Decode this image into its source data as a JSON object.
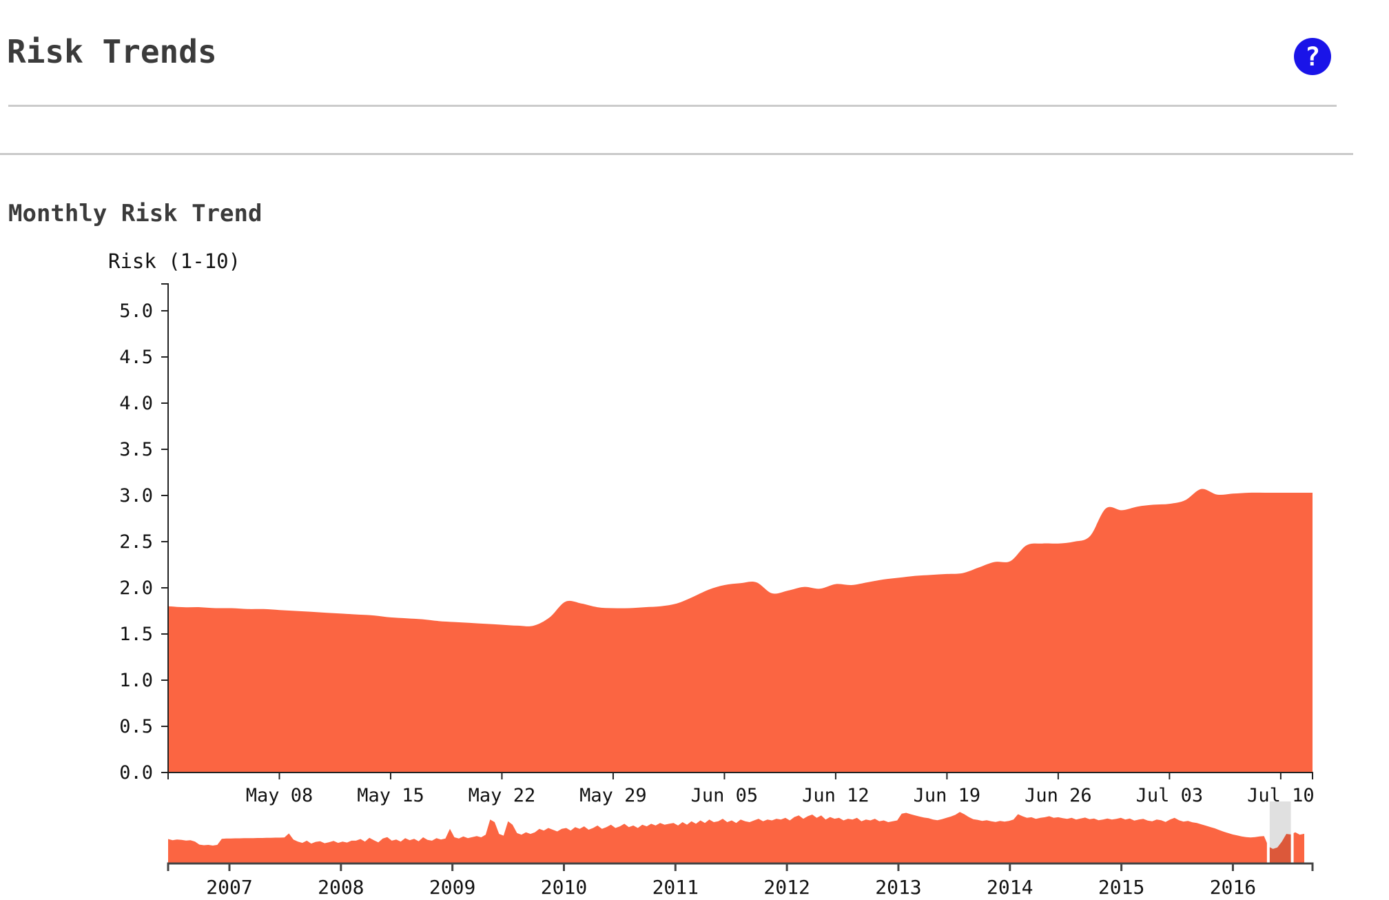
{
  "page": {
    "title": "Risk Trends"
  },
  "header": {
    "help_glyph": "?"
  },
  "chart_data": {
    "type": "area",
    "title": "Monthly Risk Trend",
    "ylabel": "Risk (1-10)",
    "ylim": [
      0,
      5
    ],
    "grid": false,
    "legend": "none",
    "colors": {
      "area": "#FB6542",
      "axis": "#222222",
      "mini_axis": "#444444",
      "tick_text": "#111111",
      "brush_overlay": "rgba(0,0,0,0.12)"
    },
    "y_ticks": [
      0,
      0.5,
      1.0,
      1.5,
      2.0,
      2.5,
      3.0,
      3.5,
      4.0,
      4.5,
      5.0
    ],
    "x_ticks": [
      {
        "label": "May 08",
        "day_index": 7
      },
      {
        "label": "May 15",
        "day_index": 14
      },
      {
        "label": "May 22",
        "day_index": 21
      },
      {
        "label": "May 29",
        "day_index": 28
      },
      {
        "label": "Jun 05",
        "day_index": 35
      },
      {
        "label": "Jun 12",
        "day_index": 42
      },
      {
        "label": "Jun 19",
        "day_index": 49
      },
      {
        "label": "Jun 26",
        "day_index": 56
      },
      {
        "label": "Jul 03",
        "day_index": 63
      },
      {
        "label": "Jul 10",
        "day_index": 70
      }
    ],
    "series": {
      "name": "Risk",
      "start_label": "May 01",
      "interval": "day",
      "values": [
        1.8,
        1.79,
        1.79,
        1.78,
        1.78,
        1.77,
        1.77,
        1.76,
        1.75,
        1.74,
        1.73,
        1.72,
        1.71,
        1.7,
        1.68,
        1.67,
        1.66,
        1.64,
        1.63,
        1.62,
        1.61,
        1.6,
        1.59,
        1.59,
        1.68,
        1.85,
        1.83,
        1.79,
        1.78,
        1.78,
        1.79,
        1.8,
        1.83,
        1.9,
        1.98,
        2.03,
        2.05,
        2.06,
        1.94,
        1.97,
        2.01,
        1.99,
        2.04,
        2.03,
        2.06,
        2.09,
        2.11,
        2.13,
        2.14,
        2.15,
        2.16,
        2.22,
        2.28,
        2.29,
        2.46,
        2.48,
        2.48,
        2.5,
        2.56,
        2.86,
        2.84,
        2.88,
        2.9,
        2.91,
        2.95,
        3.07,
        3.01,
        3.02,
        3.03,
        3.03,
        3.03,
        3.03,
        3.03
      ]
    },
    "overview": {
      "x_range_years": [
        2006.45,
        2016.64
      ],
      "x_ticks": [
        {
          "label": "2007",
          "year": 2007
        },
        {
          "label": "2008",
          "year": 2008
        },
        {
          "label": "2009",
          "year": 2009
        },
        {
          "label": "2010",
          "year": 2010
        },
        {
          "label": "2011",
          "year": 2011
        },
        {
          "label": "2012",
          "year": 2012
        },
        {
          "label": "2013",
          "year": 2013
        },
        {
          "label": "2014",
          "year": 2014
        },
        {
          "label": "2015",
          "year": 2015
        },
        {
          "label": "2016",
          "year": 2016
        }
      ],
      "brush": {
        "start_year": 2016.33,
        "end_year": 2016.52
      },
      "values": [
        1.45,
        1.38,
        1.42,
        1.4,
        1.36,
        1.38,
        1.3,
        1.12,
        1.08,
        1.1,
        1.06,
        1.1,
        1.46,
        1.48,
        1.48,
        1.49,
        1.49,
        1.5,
        1.5,
        1.5,
        1.51,
        1.51,
        1.52,
        1.52,
        1.53,
        1.53,
        1.54,
        1.78,
        1.42,
        1.3,
        1.22,
        1.35,
        1.18,
        1.28,
        1.32,
        1.2,
        1.26,
        1.34,
        1.22,
        1.3,
        1.24,
        1.35,
        1.35,
        1.45,
        1.3,
        1.52,
        1.38,
        1.25,
        1.48,
        1.56,
        1.35,
        1.42,
        1.3,
        1.5,
        1.38,
        1.46,
        1.32,
        1.55,
        1.4,
        1.35,
        1.5,
        1.42,
        1.48,
        2.05,
        1.55,
        1.48,
        1.6,
        1.5,
        1.56,
        1.62,
        1.55,
        1.7,
        2.6,
        2.45,
        1.75,
        1.65,
        2.5,
        2.3,
        1.8,
        1.7,
        1.85,
        1.75,
        1.85,
        2.05,
        1.95,
        2.1,
        2.0,
        1.9,
        2.05,
        2.1,
        1.95,
        2.15,
        2.05,
        2.2,
        2.0,
        2.1,
        2.25,
        2.05,
        2.15,
        2.3,
        2.1,
        2.2,
        2.35,
        2.15,
        2.25,
        2.1,
        2.3,
        2.2,
        2.35,
        2.25,
        2.4,
        2.3,
        2.35,
        2.4,
        2.25,
        2.45,
        2.3,
        2.5,
        2.35,
        2.55,
        2.4,
        2.6,
        2.45,
        2.5,
        2.65,
        2.45,
        2.55,
        2.4,
        2.6,
        2.5,
        2.45,
        2.55,
        2.65,
        2.5,
        2.6,
        2.55,
        2.65,
        2.6,
        2.7,
        2.55,
        2.75,
        2.85,
        2.65,
        2.8,
        2.9,
        2.7,
        2.85,
        2.6,
        2.75,
        2.65,
        2.7,
        2.55,
        2.65,
        2.6,
        2.7,
        2.5,
        2.6,
        2.55,
        2.65,
        2.5,
        2.55,
        2.45,
        2.5,
        2.55,
        2.95,
        3.0,
        2.92,
        2.85,
        2.78,
        2.72,
        2.68,
        2.6,
        2.56,
        2.62,
        2.7,
        2.78,
        2.88,
        3.05,
        2.92,
        2.75,
        2.62,
        2.58,
        2.52,
        2.56,
        2.5,
        2.46,
        2.52,
        2.48,
        2.52,
        2.6,
        2.92,
        2.8,
        2.7,
        2.74,
        2.64,
        2.7,
        2.74,
        2.8,
        2.7,
        2.74,
        2.68,
        2.64,
        2.7,
        2.6,
        2.66,
        2.72,
        2.62,
        2.66,
        2.56,
        2.6,
        2.66,
        2.6,
        2.64,
        2.7,
        2.6,
        2.66,
        2.54,
        2.6,
        2.64,
        2.54,
        2.5,
        2.6,
        2.56,
        2.46,
        2.6,
        2.7,
        2.56,
        2.48,
        2.52,
        2.44,
        2.4,
        2.32,
        2.24,
        2.16,
        2.08,
        1.98,
        1.88,
        1.8,
        1.72,
        1.66,
        1.6,
        1.56,
        1.54,
        1.56,
        1.6,
        1.62,
        1.0,
        0.86,
        0.95,
        1.3,
        1.75,
        1.72,
        1.85,
        1.7,
        1.76
      ]
    }
  }
}
